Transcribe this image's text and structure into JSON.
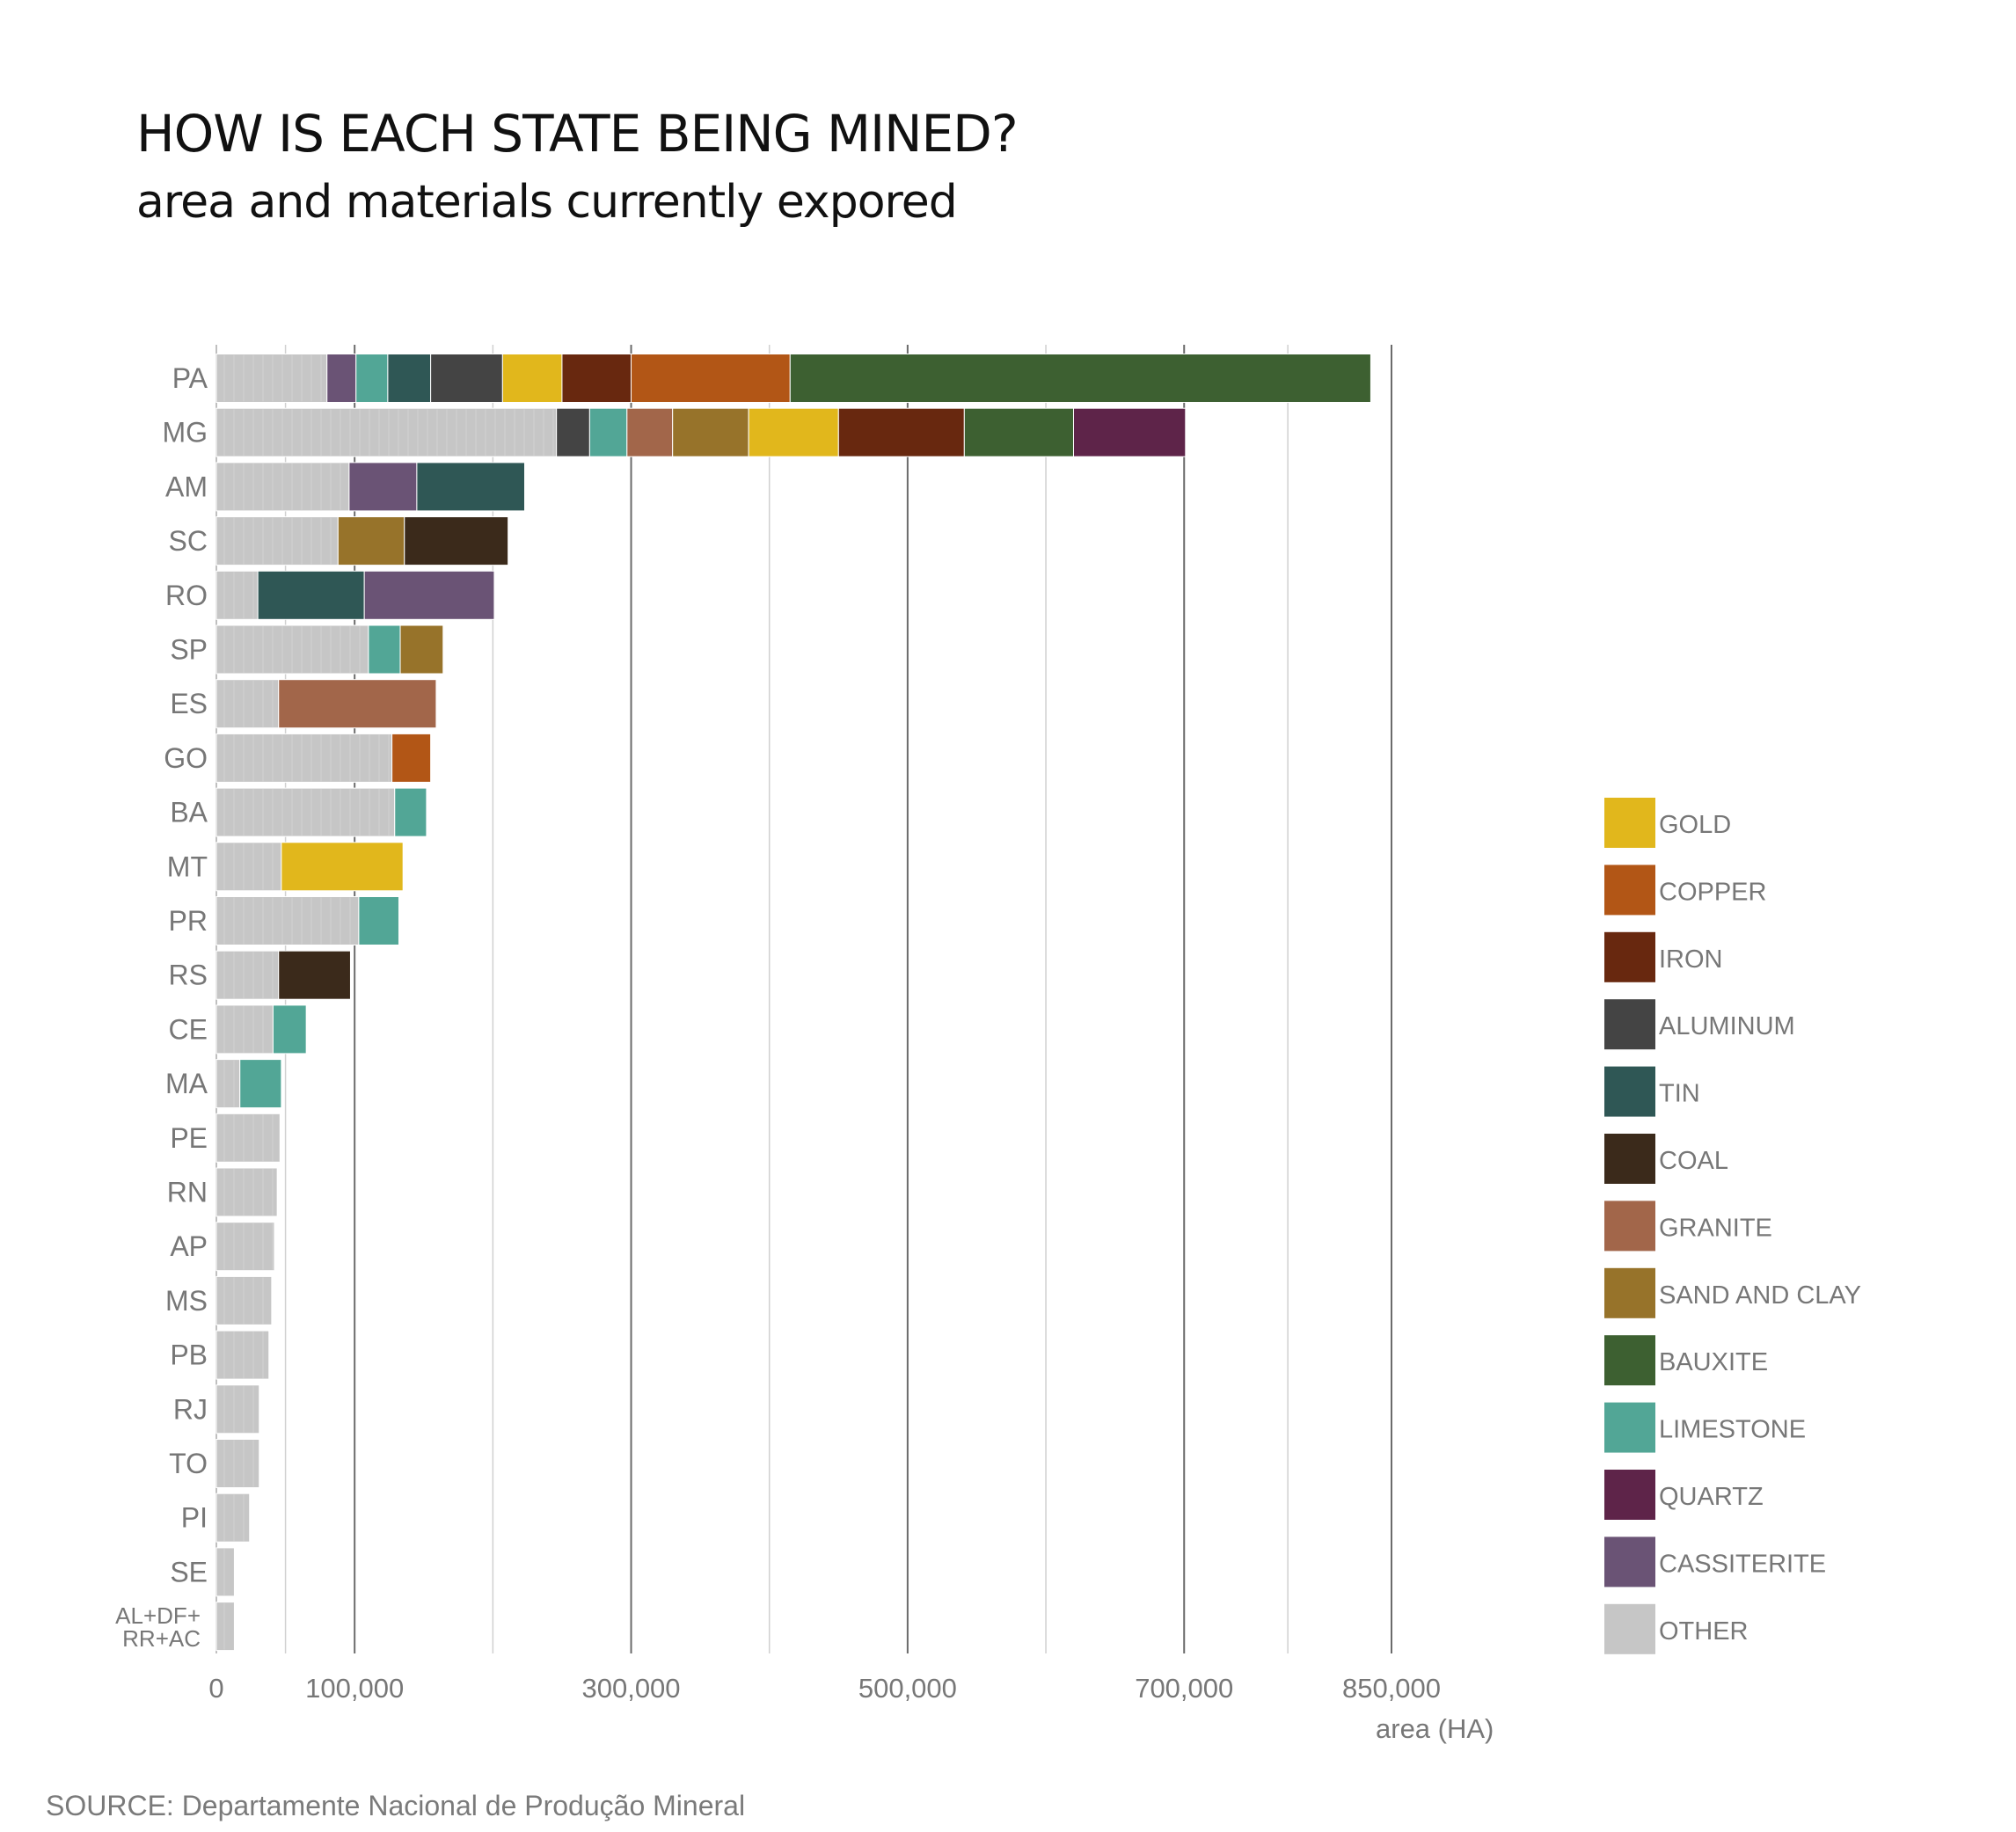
{
  "title": "HOW IS EACH STATE BEING MINED?",
  "subtitle": "area and materials currently expored",
  "source": "SOURCE: Departamente Nacional de Produção Mineral",
  "chart_data": {
    "type": "bar",
    "orientation": "horizontal",
    "stacked": true,
    "xlabel": "area (HA)",
    "ylabel": "",
    "xlim": [
      0,
      850000
    ],
    "x_ticks": [
      {
        "value": 0,
        "label": "0"
      },
      {
        "value": 100000,
        "label": "100,000"
      },
      {
        "value": 300000,
        "label": "300,000"
      },
      {
        "value": 500000,
        "label": "500,000"
      },
      {
        "value": 700000,
        "label": "700,000"
      },
      {
        "value": 850000,
        "label": "850,000"
      }
    ],
    "major_gridlines": [
      100000,
      300000,
      500000,
      700000,
      850000
    ],
    "minor_gridlines": [
      50000,
      200000,
      400000,
      600000,
      775000
    ],
    "legend_position": "right",
    "materials": [
      {
        "key": "gold",
        "label": "GOLD",
        "color": "#E1B71C"
      },
      {
        "key": "copper",
        "label": "COPPER",
        "color": "#B25616"
      },
      {
        "key": "iron",
        "label": "IRON",
        "color": "#68280F"
      },
      {
        "key": "aluminum",
        "label": "ALUMINUM",
        "color": "#444444"
      },
      {
        "key": "tin",
        "label": "TIN",
        "color": "#2F5755"
      },
      {
        "key": "coal",
        "label": "COAL",
        "color": "#3B2A1B"
      },
      {
        "key": "granite",
        "label": "GRANITE",
        "color": "#A2664A"
      },
      {
        "key": "sand_and_clay",
        "label": "SAND AND CLAY",
        "color": "#97732A"
      },
      {
        "key": "bauxite",
        "label": "BAUXITE",
        "color": "#3D6031"
      },
      {
        "key": "limestone",
        "label": "LIMESTONE",
        "color": "#52A696"
      },
      {
        "key": "quartz",
        "label": "QUARTZ",
        "color": "#5E2449"
      },
      {
        "key": "cassiterite",
        "label": "CASSITERITE",
        "color": "#6A5375"
      },
      {
        "key": "other",
        "label": "OTHER",
        "color": "#C6C6C6"
      }
    ],
    "categories": [
      "PA",
      "MG",
      "AM",
      "SC",
      "RO",
      "SP",
      "ES",
      "GO",
      "BA",
      "MT",
      "PR",
      "RS",
      "CE",
      "MA",
      "PE",
      "RN",
      "AP",
      "MS",
      "PB",
      "RJ",
      "TO",
      "PI",
      "SE",
      "AL+DF+ RR+AC"
    ],
    "category_label_lines": {
      "AL+DF+ RR+AC": [
        "AL+DF+",
        "RR+AC"
      ]
    },
    "bars": [
      {
        "state": "PA",
        "segments": [
          [
            "other",
            80000
          ],
          [
            "cassiterite",
            21000
          ],
          [
            "limestone",
            23000
          ],
          [
            "tin",
            31000
          ],
          [
            "aluminum",
            52000
          ],
          [
            "gold",
            43000
          ],
          [
            "iron",
            50000
          ],
          [
            "copper",
            115000
          ],
          [
            "bauxite",
            420000
          ]
        ]
      },
      {
        "state": "MG",
        "segments": [
          [
            "other",
            246000
          ],
          [
            "aluminum",
            24000
          ],
          [
            "limestone",
            27000
          ],
          [
            "granite",
            33000
          ],
          [
            "sand_and_clay",
            55000
          ],
          [
            "gold",
            65000
          ],
          [
            "iron",
            91000
          ],
          [
            "bauxite",
            79000
          ],
          [
            "quartz",
            81000
          ]
        ]
      },
      {
        "state": "AM",
        "segments": [
          [
            "other",
            96000
          ],
          [
            "cassiterite",
            49000
          ],
          [
            "tin",
            78000
          ]
        ]
      },
      {
        "state": "SC",
        "segments": [
          [
            "other",
            88000
          ],
          [
            "sand_and_clay",
            48000
          ],
          [
            "coal",
            75000
          ]
        ]
      },
      {
        "state": "RO",
        "segments": [
          [
            "other",
            30000
          ],
          [
            "tin",
            77000
          ],
          [
            "cassiterite",
            94000
          ]
        ]
      },
      {
        "state": "SP",
        "segments": [
          [
            "other",
            110000
          ],
          [
            "limestone",
            23000
          ],
          [
            "sand_and_clay",
            31000
          ]
        ]
      },
      {
        "state": "ES",
        "segments": [
          [
            "other",
            45000
          ],
          [
            "granite",
            114000
          ]
        ]
      },
      {
        "state": "GO",
        "segments": [
          [
            "other",
            127000
          ],
          [
            "copper",
            28000
          ]
        ]
      },
      {
        "state": "BA",
        "segments": [
          [
            "other",
            129000
          ],
          [
            "limestone",
            23000
          ]
        ]
      },
      {
        "state": "MT",
        "segments": [
          [
            "other",
            47000
          ],
          [
            "gold",
            88000
          ]
        ]
      },
      {
        "state": "PR",
        "segments": [
          [
            "other",
            103000
          ],
          [
            "limestone",
            29000
          ]
        ]
      },
      {
        "state": "RS",
        "segments": [
          [
            "other",
            45000
          ],
          [
            "coal",
            52000
          ]
        ]
      },
      {
        "state": "CE",
        "segments": [
          [
            "other",
            41000
          ],
          [
            "limestone",
            24000
          ]
        ]
      },
      {
        "state": "MA",
        "segments": [
          [
            "other",
            17000
          ],
          [
            "limestone",
            30000
          ]
        ]
      },
      {
        "state": "PE",
        "segments": [
          [
            "other",
            46000
          ]
        ]
      },
      {
        "state": "RN",
        "segments": [
          [
            "other",
            44000
          ]
        ]
      },
      {
        "state": "AP",
        "segments": [
          [
            "other",
            42000
          ]
        ]
      },
      {
        "state": "MS",
        "segments": [
          [
            "other",
            40000
          ]
        ]
      },
      {
        "state": "PB",
        "segments": [
          [
            "other",
            38000
          ]
        ]
      },
      {
        "state": "RJ",
        "segments": [
          [
            "other",
            31000
          ]
        ]
      },
      {
        "state": "TO",
        "segments": [
          [
            "other",
            31000
          ]
        ]
      },
      {
        "state": "PI",
        "segments": [
          [
            "other",
            24000
          ]
        ]
      },
      {
        "state": "SE",
        "segments": [
          [
            "other",
            13000
          ]
        ]
      },
      {
        "state": "AL+DF+ RR+AC",
        "segments": [
          [
            "other",
            13000
          ]
        ]
      }
    ]
  }
}
